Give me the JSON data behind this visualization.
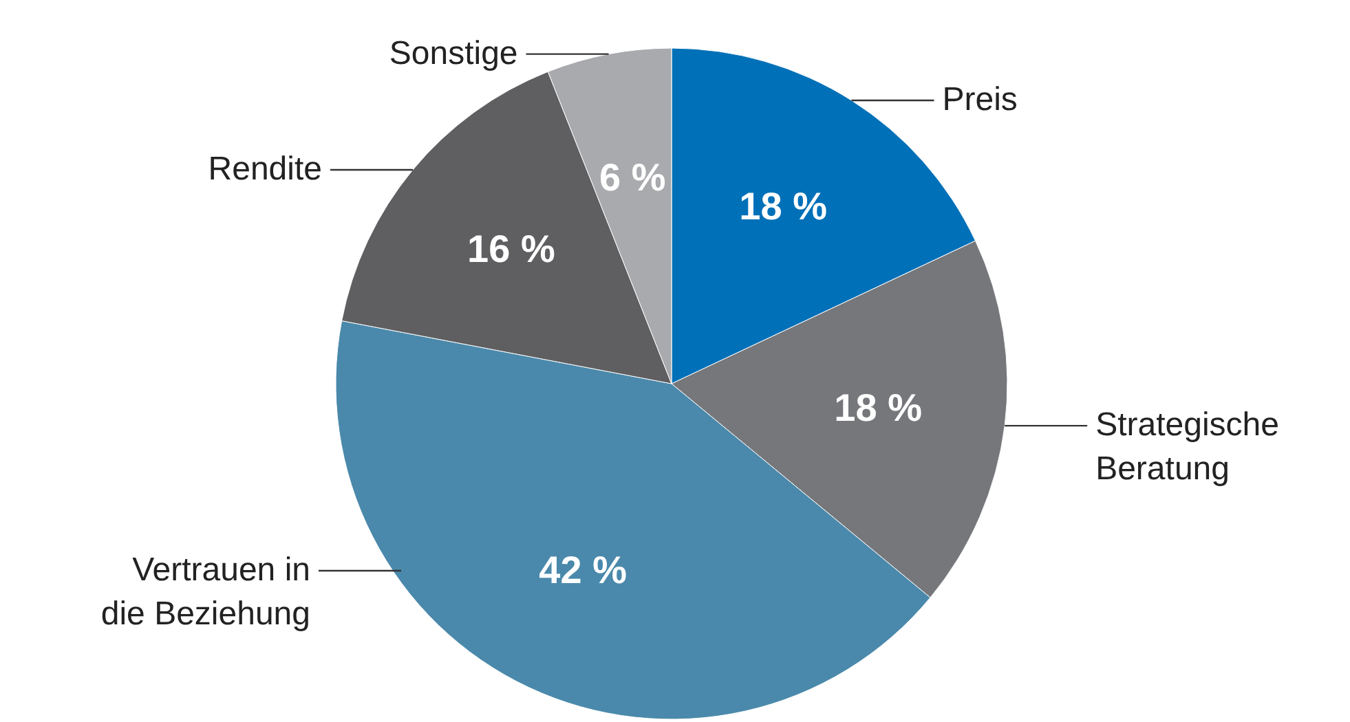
{
  "chart_data": {
    "type": "pie",
    "categories": [
      "Preis",
      "Strategische Beratung",
      "Vertrauen in die Beziehung",
      "Rendite",
      "Sonstige"
    ],
    "values": [
      18,
      18,
      42,
      16,
      6
    ],
    "value_labels": [
      "18 %",
      "18 %",
      "42 %",
      "16 %",
      "6 %"
    ],
    "colors": [
      "#0070b8",
      "#76777b",
      "#4a89ab",
      "#5f5f62",
      "#a9aaad"
    ]
  }
}
